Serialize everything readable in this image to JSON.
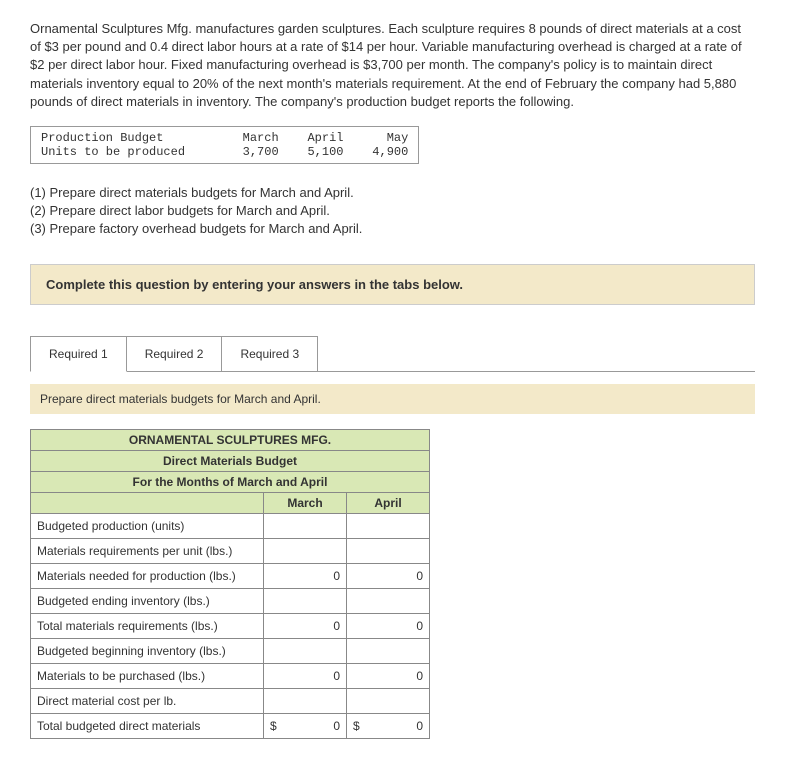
{
  "intro": "Ornamental Sculptures Mfg. manufactures garden sculptures. Each sculpture requires 8 pounds of direct materials at a cost of $3 per pound and 0.4 direct labor hours at a rate of $14 per hour. Variable manufacturing overhead is charged at a rate of $2 per direct labor hour. Fixed manufacturing overhead is $3,700 per month. The company's policy is to maintain direct materials inventory equal to 20% of the next month's materials requirement. At the end of February the company had 5,880 pounds of direct materials in inventory. The company's production budget reports the following.",
  "prod_budget": {
    "label_row1": "Production Budget",
    "label_row2": "Units to be produced",
    "months": [
      "March",
      "April",
      "May"
    ],
    "values": [
      "3,700",
      "5,100",
      "4,900"
    ]
  },
  "questions": {
    "q1": "(1) Prepare direct materials budgets for March and April.",
    "q2": "(2) Prepare direct labor budgets for March and April.",
    "q3": "(3) Prepare factory overhead budgets for March and April."
  },
  "instruction": "Complete this question by entering your answers in the tabs below.",
  "tabs": [
    "Required 1",
    "Required 2",
    "Required 3"
  ],
  "panel": {
    "instruction": "Prepare direct materials budgets for March and April.",
    "table": {
      "header1": "ORNAMENTAL SCULPTURES MFG.",
      "header2": "Direct Materials Budget",
      "header3": "For the Months of March and April",
      "col1": "March",
      "col2": "April",
      "rows": [
        {
          "label": "Budgeted production (units)",
          "march": "",
          "april": ""
        },
        {
          "label": "Materials requirements per unit (lbs.)",
          "march": "",
          "april": ""
        },
        {
          "label": "Materials needed for production (lbs.)",
          "march": "0",
          "april": "0"
        },
        {
          "label": "Budgeted ending inventory (lbs.)",
          "march": "",
          "april": ""
        },
        {
          "label": "Total materials requirements (lbs.)",
          "march": "0",
          "april": "0"
        },
        {
          "label": "Budgeted beginning inventory (lbs.)",
          "march": "",
          "april": ""
        },
        {
          "label": "Materials to be purchased (lbs.)",
          "march": "0",
          "april": "0"
        },
        {
          "label": "Direct material cost per lb.",
          "march": "",
          "april": ""
        },
        {
          "label": "Total budgeted direct materials",
          "march": "0",
          "april": "0",
          "currency": true
        }
      ]
    }
  },
  "colors": {
    "beige": "#f3e9c9",
    "green": "#d9e8b5",
    "border": "#888888"
  }
}
